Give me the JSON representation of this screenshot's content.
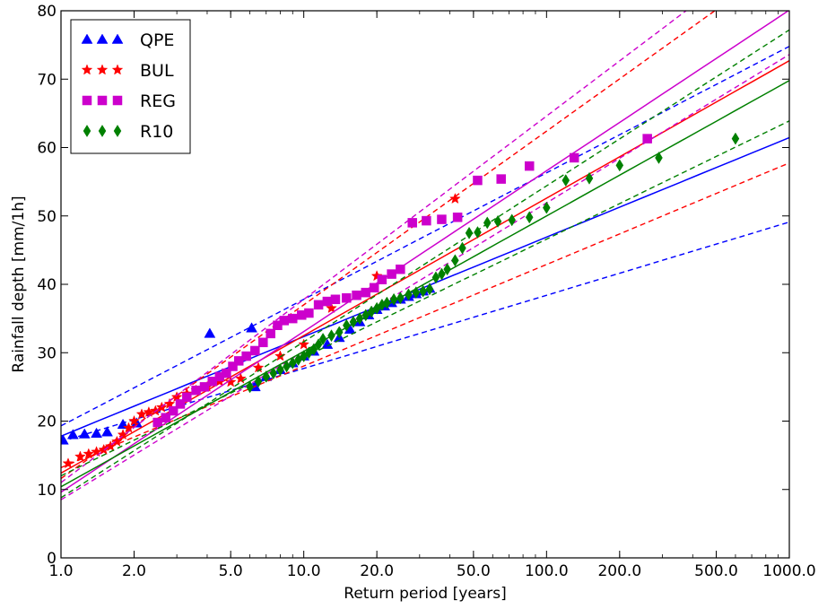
{
  "chart_data": {
    "type": "scatter",
    "xlabel": "Return period [years]",
    "ylabel": "Rainfall depth [mm/1h]",
    "xscale": "log",
    "xlim": [
      1,
      1000
    ],
    "ylim": [
      0,
      80
    ],
    "x_ticks": [
      1,
      2,
      5,
      10,
      20,
      50,
      100,
      200,
      500,
      1000
    ],
    "x_tick_labels": [
      "1.0",
      "2.0",
      "5.0",
      "10.0",
      "20.0",
      "50.0",
      "100.0",
      "200.0",
      "500.0",
      "1000.0"
    ],
    "y_ticks": [
      0,
      10,
      20,
      30,
      40,
      50,
      60,
      70,
      80
    ],
    "y_tick_labels": [
      "0",
      "10",
      "20",
      "30",
      "40",
      "50",
      "60",
      "70",
      "80"
    ],
    "grid": false,
    "legend_position": "top-left",
    "series": [
      {
        "name": "QPE",
        "color": "#0000ff",
        "marker": "triangle",
        "points": [
          [
            1.02,
            17.2
          ],
          [
            1.12,
            18.0
          ],
          [
            1.25,
            18.1
          ],
          [
            1.4,
            18.2
          ],
          [
            1.55,
            18.4
          ],
          [
            1.8,
            19.5
          ],
          [
            2.05,
            19.7
          ],
          [
            4.1,
            32.8
          ],
          [
            6.1,
            33.6
          ],
          [
            6.3,
            25.0
          ],
          [
            7.0,
            26.5
          ],
          [
            8.0,
            27.5
          ],
          [
            9.0,
            28.5
          ],
          [
            10.0,
            29.5
          ],
          [
            11.0,
            30.2
          ],
          [
            12.5,
            31.2
          ],
          [
            14.0,
            32.2
          ],
          [
            15.5,
            33.4
          ],
          [
            17.0,
            34.5
          ],
          [
            18.5,
            35.5
          ],
          [
            20.0,
            36.3
          ],
          [
            21.5,
            36.8
          ],
          [
            23.0,
            37.3
          ],
          [
            25.0,
            37.8
          ],
          [
            27.0,
            38.2
          ],
          [
            29.0,
            38.6
          ],
          [
            31.0,
            39.0
          ],
          [
            33.0,
            39.4
          ]
        ],
        "fit": {
          "a": 17.8,
          "b": 14.55
        },
        "ci_lower": {
          "a": 17.0,
          "b": 10.7
        },
        "ci_upper": {
          "a": 19.3,
          "b": 18.5
        }
      },
      {
        "name": "BUL",
        "color": "#ff0000",
        "marker": "star",
        "points": [
          [
            1.07,
            13.8
          ],
          [
            1.2,
            14.8
          ],
          [
            1.3,
            15.2
          ],
          [
            1.4,
            15.5
          ],
          [
            1.5,
            15.8
          ],
          [
            1.6,
            16.3
          ],
          [
            1.7,
            17.0
          ],
          [
            1.8,
            18.0
          ],
          [
            1.9,
            19.0
          ],
          [
            2.0,
            20.0
          ],
          [
            2.15,
            21.0
          ],
          [
            2.3,
            21.3
          ],
          [
            2.45,
            21.5
          ],
          [
            2.6,
            22.0
          ],
          [
            2.8,
            22.5
          ],
          [
            3.0,
            23.5
          ],
          [
            3.3,
            24.0
          ],
          [
            3.6,
            24.5
          ],
          [
            4.0,
            25.0
          ],
          [
            4.5,
            25.8
          ],
          [
            5.0,
            25.7
          ],
          [
            5.5,
            26.2
          ],
          [
            6.5,
            27.8
          ],
          [
            8.0,
            29.5
          ],
          [
            10.0,
            31.2
          ],
          [
            13.0,
            36.5
          ],
          [
            20.0,
            41.2
          ],
          [
            42.0,
            52.5
          ]
        ],
        "fit": {
          "a": 12.4,
          "b": 20.1
        },
        "ci_lower": {
          "a": 13.2,
          "b": 14.85
        },
        "ci_upper": {
          "a": 11.6,
          "b": 25.4
        }
      },
      {
        "name": "REG",
        "color": "#cc00cc",
        "marker": "square",
        "points": [
          [
            2.5,
            19.8
          ],
          [
            2.7,
            20.5
          ],
          [
            2.9,
            21.5
          ],
          [
            3.1,
            22.5
          ],
          [
            3.3,
            23.5
          ],
          [
            3.6,
            24.5
          ],
          [
            3.9,
            25.0
          ],
          [
            4.2,
            25.8
          ],
          [
            4.5,
            26.5
          ],
          [
            4.8,
            27.0
          ],
          [
            5.1,
            28.0
          ],
          [
            5.4,
            28.8
          ],
          [
            5.8,
            29.5
          ],
          [
            6.3,
            30.3
          ],
          [
            6.8,
            31.5
          ],
          [
            7.3,
            32.8
          ],
          [
            7.8,
            34.0
          ],
          [
            8.3,
            34.7
          ],
          [
            9.0,
            35.0
          ],
          [
            9.8,
            35.5
          ],
          [
            10.5,
            35.8
          ],
          [
            11.5,
            37.0
          ],
          [
            12.5,
            37.5
          ],
          [
            13.5,
            37.8
          ],
          [
            15.0,
            38.0
          ],
          [
            16.5,
            38.4
          ],
          [
            18.0,
            38.8
          ],
          [
            19.5,
            39.5
          ],
          [
            21.0,
            40.7
          ],
          [
            23.0,
            41.5
          ],
          [
            25.0,
            42.2
          ],
          [
            28.0,
            49.0
          ],
          [
            32.0,
            49.3
          ],
          [
            37.0,
            49.5
          ],
          [
            43.0,
            49.8
          ],
          [
            52.0,
            55.2
          ],
          [
            65.0,
            55.4
          ],
          [
            85.0,
            57.3
          ],
          [
            130.0,
            58.5
          ],
          [
            260.0,
            61.3
          ]
        ],
        "fit": {
          "a": 9.6,
          "b": 23.5
        },
        "ci_lower": {
          "a": 8.5,
          "b": 21.7
        },
        "ci_upper": {
          "a": 11.0,
          "b": 26.8
        }
      },
      {
        "name": "R10",
        "color": "#008000",
        "marker": "diamond",
        "points": [
          [
            6.0,
            25.0
          ],
          [
            6.5,
            25.8
          ],
          [
            7.0,
            26.5
          ],
          [
            7.5,
            27.0
          ],
          [
            8.0,
            27.5
          ],
          [
            8.5,
            28.0
          ],
          [
            9.0,
            28.5
          ],
          [
            9.5,
            29.0
          ],
          [
            10.0,
            29.5
          ],
          [
            10.5,
            30.0
          ],
          [
            11.0,
            30.5
          ],
          [
            11.5,
            31.2
          ],
          [
            12.0,
            32.0
          ],
          [
            13.0,
            32.5
          ],
          [
            14.0,
            33.0
          ],
          [
            15.0,
            34.0
          ],
          [
            16.0,
            34.5
          ],
          [
            17.0,
            35.0
          ],
          [
            18.0,
            35.5
          ],
          [
            19.0,
            36.0
          ],
          [
            20.0,
            36.5
          ],
          [
            21.0,
            37.0
          ],
          [
            22.0,
            37.3
          ],
          [
            23.5,
            37.8
          ],
          [
            25.0,
            38.0
          ],
          [
            27.0,
            38.5
          ],
          [
            29.0,
            38.8
          ],
          [
            31.0,
            39.0
          ],
          [
            33.0,
            39.3
          ],
          [
            35.0,
            41.0
          ],
          [
            37.0,
            41.5
          ],
          [
            39.0,
            42.2
          ],
          [
            42.0,
            43.5
          ],
          [
            45.0,
            45.3
          ],
          [
            48.0,
            47.5
          ],
          [
            52.0,
            47.6
          ],
          [
            57.0,
            49.0
          ],
          [
            63.0,
            49.2
          ],
          [
            72.0,
            49.4
          ],
          [
            85.0,
            49.8
          ],
          [
            100.0,
            51.2
          ],
          [
            120.0,
            55.2
          ],
          [
            150.0,
            55.5
          ],
          [
            200.0,
            57.4
          ],
          [
            290.0,
            58.5
          ],
          [
            600.0,
            61.3
          ]
        ],
        "fit": {
          "a": 10.4,
          "b": 19.8
        },
        "ci_lower": {
          "a": 12.0,
          "b": 17.3
        },
        "ci_upper": {
          "a": 8.8,
          "b": 22.8
        }
      }
    ]
  }
}
